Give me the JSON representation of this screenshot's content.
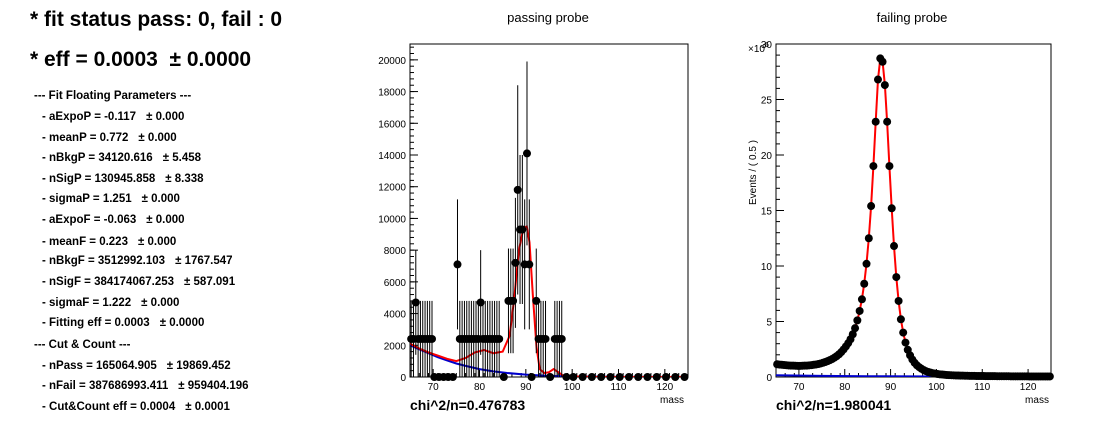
{
  "summary": {
    "fit_status": "* fit status pass: 0, fail : 0",
    "eff_label": "* eff = 0.0003",
    "eff_err": "± 0.0000",
    "floating_header": "--- Fit Floating Parameters ---",
    "params": [
      {
        "label": "- aExpoP = -0.117",
        "err": "± 0.000"
      },
      {
        "label": "- meanP = 0.772",
        "err": "± 0.000"
      },
      {
        "label": "- nBkgP = 34120.616",
        "err": "± 5.458"
      },
      {
        "label": "- nSigP = 130945.858",
        "err": "± 8.338"
      },
      {
        "label": "- sigmaP = 1.251",
        "err": "± 0.000"
      },
      {
        "label": "- aExpoF = -0.063",
        "err": "± 0.000"
      },
      {
        "label": "- meanF = 0.223",
        "err": "± 0.000"
      },
      {
        "label": "- nBkgF = 3512992.103",
        "err": "± 1767.547"
      },
      {
        "label": "- nSigF = 384174067.253",
        "err": "± 587.091"
      },
      {
        "label": "- sigmaF = 1.222",
        "err": "± 0.000"
      },
      {
        "label": "- Fitting eff = 0.0003",
        "err": "± 0.0000"
      }
    ],
    "cutcount_header": "--- Cut & Count ---",
    "cutcount": [
      {
        "label": "- nPass = 165064.905",
        "err": "± 19869.452"
      },
      {
        "label": "- nFail = 387686993.411",
        "err": "± 959404.196"
      },
      {
        "label": "- Cut&Count eff = 0.0004",
        "err": "± 0.0001"
      }
    ]
  },
  "colors": {
    "signal_fit": "#ff0000",
    "background_fit": "#0000cc",
    "points": "#000000"
  },
  "chart_data": [
    {
      "type": "scatter",
      "title": "passing probe",
      "xlabel": "mass",
      "ylabel": "",
      "annotation": "chi^2/n=0.476783",
      "xlim": [
        65,
        125
      ],
      "ylim": [
        0,
        21000
      ],
      "x_ticks": [
        70,
        80,
        90,
        100,
        110,
        120
      ],
      "y_ticks": [
        0,
        2000,
        4000,
        6000,
        8000,
        10000,
        12000,
        14000,
        16000,
        18000,
        20000
      ],
      "y_ticklabels": [
        "0",
        "2000",
        "4000",
        "6000",
        "8000",
        "10000",
        "12000",
        "14000",
        "16000",
        "18000",
        "20000"
      ],
      "points": [
        {
          "x": 65.25,
          "y": 2400,
          "err": 2400
        },
        {
          "x": 65.75,
          "y": 2400,
          "err": 2400
        },
        {
          "x": 66.25,
          "y": 4700,
          "err": 3300
        },
        {
          "x": 66.75,
          "y": 2400,
          "err": 2400
        },
        {
          "x": 67.25,
          "y": 2400,
          "err": 2400
        },
        {
          "x": 67.75,
          "y": 2400,
          "err": 2400
        },
        {
          "x": 68.25,
          "y": 2400,
          "err": 2400
        },
        {
          "x": 68.75,
          "y": 2400,
          "err": 2400
        },
        {
          "x": 69.25,
          "y": 2400,
          "err": 2400
        },
        {
          "x": 69.75,
          "y": 2400,
          "err": 2400
        },
        {
          "x": 70.25,
          "y": 0,
          "err": 0
        },
        {
          "x": 71.25,
          "y": 0,
          "err": 0
        },
        {
          "x": 72.25,
          "y": 0,
          "err": 0
        },
        {
          "x": 73.25,
          "y": 0,
          "err": 0
        },
        {
          "x": 74.25,
          "y": 0,
          "err": 0
        },
        {
          "x": 75.25,
          "y": 7100,
          "err": 4100
        },
        {
          "x": 75.75,
          "y": 2400,
          "err": 2400
        },
        {
          "x": 76.25,
          "y": 2400,
          "err": 2400
        },
        {
          "x": 76.75,
          "y": 2400,
          "err": 2400
        },
        {
          "x": 77.25,
          "y": 2400,
          "err": 2400
        },
        {
          "x": 77.75,
          "y": 2400,
          "err": 2400
        },
        {
          "x": 78.25,
          "y": 2400,
          "err": 2400
        },
        {
          "x": 78.75,
          "y": 2400,
          "err": 2400
        },
        {
          "x": 79.25,
          "y": 2400,
          "err": 2400
        },
        {
          "x": 79.75,
          "y": 2400,
          "err": 2400
        },
        {
          "x": 80.25,
          "y": 4700,
          "err": 3300
        },
        {
          "x": 80.75,
          "y": 2400,
          "err": 2400
        },
        {
          "x": 81.25,
          "y": 2400,
          "err": 2400
        },
        {
          "x": 81.75,
          "y": 2400,
          "err": 2400
        },
        {
          "x": 82.25,
          "y": 2400,
          "err": 2400
        },
        {
          "x": 82.75,
          "y": 2400,
          "err": 2400
        },
        {
          "x": 83.25,
          "y": 2400,
          "err": 2400
        },
        {
          "x": 83.75,
          "y": 2400,
          "err": 2400
        },
        {
          "x": 84.25,
          "y": 2400,
          "err": 2400
        },
        {
          "x": 85.25,
          "y": 0,
          "err": 0
        },
        {
          "x": 86.25,
          "y": 4800,
          "err": 3300
        },
        {
          "x": 86.75,
          "y": 4800,
          "err": 3300
        },
        {
          "x": 87.25,
          "y": 4800,
          "err": 3300
        },
        {
          "x": 87.75,
          "y": 7200,
          "err": 4100
        },
        {
          "x": 88.25,
          "y": 11800,
          "err": 6600
        },
        {
          "x": 88.75,
          "y": 9300,
          "err": 4700
        },
        {
          "x": 89.25,
          "y": 9300,
          "err": 4700
        },
        {
          "x": 89.75,
          "y": 7100,
          "err": 4100
        },
        {
          "x": 90.25,
          "y": 14100,
          "err": 5800
        },
        {
          "x": 90.75,
          "y": 7100,
          "err": 4100
        },
        {
          "x": 91.25,
          "y": 0,
          "err": 0
        },
        {
          "x": 92.25,
          "y": 4800,
          "err": 3300
        },
        {
          "x": 92.75,
          "y": 2400,
          "err": 2400
        },
        {
          "x": 93.25,
          "y": 2400,
          "err": 2400
        },
        {
          "x": 93.75,
          "y": 2400,
          "err": 2400
        },
        {
          "x": 94.25,
          "y": 2400,
          "err": 2400
        },
        {
          "x": 95.25,
          "y": 0,
          "err": 0
        },
        {
          "x": 96.25,
          "y": 2400,
          "err": 2400
        },
        {
          "x": 96.75,
          "y": 2400,
          "err": 2400
        },
        {
          "x": 97.25,
          "y": 2400,
          "err": 2400
        },
        {
          "x": 97.75,
          "y": 2400,
          "err": 2400
        },
        {
          "x": 98.75,
          "y": 0,
          "err": 0
        },
        {
          "x": 100.25,
          "y": 0,
          "err": 0
        },
        {
          "x": 102.25,
          "y": 0,
          "err": 0
        },
        {
          "x": 104.25,
          "y": 0,
          "err": 0
        },
        {
          "x": 106.25,
          "y": 0,
          "err": 0
        },
        {
          "x": 108.25,
          "y": 0,
          "err": 0
        },
        {
          "x": 110.25,
          "y": 0,
          "err": 0
        },
        {
          "x": 112.25,
          "y": 0,
          "err": 0
        },
        {
          "x": 114.25,
          "y": 0,
          "err": 0
        },
        {
          "x": 116.25,
          "y": 0,
          "err": 0
        },
        {
          "x": 118.25,
          "y": 0,
          "err": 0
        },
        {
          "x": 120.25,
          "y": 0,
          "err": 0
        },
        {
          "x": 122.25,
          "y": 0,
          "err": 0
        },
        {
          "x": 124.25,
          "y": 0,
          "err": 0
        }
      ],
      "signal_fit": [
        [
          65,
          2100
        ],
        [
          67,
          1800
        ],
        [
          69,
          1550
        ],
        [
          71,
          1350
        ],
        [
          73,
          1150
        ],
        [
          75,
          1000
        ],
        [
          77,
          1200
        ],
        [
          79,
          1550
        ],
        [
          81,
          1700
        ],
        [
          83,
          1500
        ],
        [
          85,
          1600
        ],
        [
          86.5,
          2600
        ],
        [
          87.5,
          5000
        ],
        [
          88.5,
          8000
        ],
        [
          89.5,
          9400
        ],
        [
          90.2,
          9500
        ],
        [
          90.8,
          8500
        ],
        [
          91.5,
          5200
        ],
        [
          92.3,
          1900
        ],
        [
          93,
          500
        ],
        [
          94,
          250
        ],
        [
          95,
          300
        ],
        [
          96,
          500
        ],
        [
          97,
          300
        ],
        [
          98,
          100
        ],
        [
          100,
          40
        ],
        [
          105,
          0
        ],
        [
          125,
          0
        ]
      ],
      "background_fit": [
        [
          65,
          2000
        ],
        [
          67,
          1750
        ],
        [
          69,
          1500
        ],
        [
          71,
          1250
        ],
        [
          73,
          1050
        ],
        [
          75,
          850
        ],
        [
          77,
          700
        ],
        [
          80,
          500
        ],
        [
          83,
          350
        ],
        [
          86,
          250
        ],
        [
          90,
          150
        ],
        [
          95,
          70
        ],
        [
          100,
          30
        ],
        [
          110,
          5
        ],
        [
          125,
          0
        ]
      ]
    },
    {
      "type": "scatter",
      "title": "failing probe",
      "xlabel": "mass",
      "ylabel": "Events / ( 0.5 )",
      "annotation": "chi^2/n=1.980041",
      "y_multiplier": "×10",
      "y_multiplier_exp": "6",
      "xlim": [
        65,
        125
      ],
      "ylim": [
        0,
        30
      ],
      "x_ticks": [
        70,
        80,
        90,
        100,
        110,
        120
      ],
      "y_ticks": [
        0,
        5,
        10,
        15,
        20,
        25,
        30
      ],
      "y_ticklabels": [
        "0",
        "5",
        "10",
        "15",
        "20",
        "25",
        "30"
      ],
      "points": [
        {
          "x": 65.25,
          "y": 1.15
        },
        {
          "x": 65.75,
          "y": 1.12
        },
        {
          "x": 66.25,
          "y": 1.1
        },
        {
          "x": 66.75,
          "y": 1.08
        },
        {
          "x": 67.25,
          "y": 1.06
        },
        {
          "x": 67.75,
          "y": 1.04
        },
        {
          "x": 68.25,
          "y": 1.03
        },
        {
          "x": 68.75,
          "y": 1.02
        },
        {
          "x": 69.25,
          "y": 1.01
        },
        {
          "x": 69.75,
          "y": 1.0
        },
        {
          "x": 70.25,
          "y": 1.0
        },
        {
          "x": 70.75,
          "y": 1.01
        },
        {
          "x": 71.25,
          "y": 1.02
        },
        {
          "x": 71.75,
          "y": 1.03
        },
        {
          "x": 72.25,
          "y": 1.05
        },
        {
          "x": 72.75,
          "y": 1.07
        },
        {
          "x": 73.25,
          "y": 1.1
        },
        {
          "x": 73.75,
          "y": 1.13
        },
        {
          "x": 74.25,
          "y": 1.17
        },
        {
          "x": 74.75,
          "y": 1.22
        },
        {
          "x": 75.25,
          "y": 1.28
        },
        {
          "x": 75.75,
          "y": 1.35
        },
        {
          "x": 76.25,
          "y": 1.43
        },
        {
          "x": 76.75,
          "y": 1.52
        },
        {
          "x": 77.25,
          "y": 1.62
        },
        {
          "x": 77.75,
          "y": 1.74
        },
        {
          "x": 78.25,
          "y": 1.88
        },
        {
          "x": 78.75,
          "y": 2.05
        },
        {
          "x": 79.25,
          "y": 2.25
        },
        {
          "x": 79.75,
          "y": 2.48
        },
        {
          "x": 80.25,
          "y": 2.75
        },
        {
          "x": 80.75,
          "y": 3.05
        },
        {
          "x": 81.25,
          "y": 3.4
        },
        {
          "x": 81.75,
          "y": 3.85
        },
        {
          "x": 82.25,
          "y": 4.4
        },
        {
          "x": 82.75,
          "y": 5.1
        },
        {
          "x": 83.25,
          "y": 5.95
        },
        {
          "x": 83.75,
          "y": 7.0
        },
        {
          "x": 84.25,
          "y": 8.4
        },
        {
          "x": 84.75,
          "y": 10.2
        },
        {
          "x": 85.25,
          "y": 12.5
        },
        {
          "x": 85.75,
          "y": 15.4
        },
        {
          "x": 86.25,
          "y": 19.0
        },
        {
          "x": 86.75,
          "y": 23.0
        },
        {
          "x": 87.25,
          "y": 26.8
        },
        {
          "x": 87.75,
          "y": 28.7
        },
        {
          "x": 88.25,
          "y": 28.4
        },
        {
          "x": 88.75,
          "y": 26.3
        },
        {
          "x": 89.25,
          "y": 23.0
        },
        {
          "x": 89.75,
          "y": 19.0
        },
        {
          "x": 90.25,
          "y": 15.2
        },
        {
          "x": 90.75,
          "y": 11.8
        },
        {
          "x": 91.25,
          "y": 9.0
        },
        {
          "x": 91.75,
          "y": 6.85
        },
        {
          "x": 92.25,
          "y": 5.2
        },
        {
          "x": 92.75,
          "y": 4.0
        },
        {
          "x": 93.25,
          "y": 3.1
        },
        {
          "x": 93.75,
          "y": 2.45
        },
        {
          "x": 94.25,
          "y": 1.95
        },
        {
          "x": 94.75,
          "y": 1.57
        },
        {
          "x": 95.25,
          "y": 1.28
        },
        {
          "x": 95.75,
          "y": 1.05
        },
        {
          "x": 96.25,
          "y": 0.88
        },
        {
          "x": 96.75,
          "y": 0.74
        },
        {
          "x": 97.25,
          "y": 0.62
        },
        {
          "x": 97.75,
          "y": 0.52
        },
        {
          "x": 98.25,
          "y": 0.45
        },
        {
          "x": 98.75,
          "y": 0.39
        },
        {
          "x": 99.25,
          "y": 0.34
        },
        {
          "x": 99.75,
          "y": 0.3
        },
        {
          "x": 100.25,
          "y": 0.27
        },
        {
          "x": 100.75,
          "y": 0.24
        },
        {
          "x": 101.25,
          "y": 0.22
        },
        {
          "x": 101.75,
          "y": 0.2
        },
        {
          "x": 102.25,
          "y": 0.18
        },
        {
          "x": 102.75,
          "y": 0.17
        },
        {
          "x": 103.25,
          "y": 0.16
        },
        {
          "x": 103.75,
          "y": 0.15
        },
        {
          "x": 104.25,
          "y": 0.14
        },
        {
          "x": 104.75,
          "y": 0.13
        },
        {
          "x": 105.25,
          "y": 0.12
        },
        {
          "x": 105.75,
          "y": 0.12
        },
        {
          "x": 106.25,
          "y": 0.11
        },
        {
          "x": 106.75,
          "y": 0.11
        },
        {
          "x": 107.25,
          "y": 0.1
        },
        {
          "x": 107.75,
          "y": 0.1
        },
        {
          "x": 108.25,
          "y": 0.1
        },
        {
          "x": 108.75,
          "y": 0.09
        },
        {
          "x": 109.25,
          "y": 0.09
        },
        {
          "x": 109.75,
          "y": 0.09
        },
        {
          "x": 110.25,
          "y": 0.09
        },
        {
          "x": 110.75,
          "y": 0.08
        },
        {
          "x": 111.25,
          "y": 0.08
        },
        {
          "x": 111.75,
          "y": 0.08
        },
        {
          "x": 112.25,
          "y": 0.08
        },
        {
          "x": 112.75,
          "y": 0.08
        },
        {
          "x": 113.25,
          "y": 0.07
        },
        {
          "x": 113.75,
          "y": 0.07
        },
        {
          "x": 114.25,
          "y": 0.07
        },
        {
          "x": 114.75,
          "y": 0.07
        },
        {
          "x": 115.25,
          "y": 0.07
        },
        {
          "x": 115.75,
          "y": 0.07
        },
        {
          "x": 116.25,
          "y": 0.06
        },
        {
          "x": 116.75,
          "y": 0.06
        },
        {
          "x": 117.25,
          "y": 0.06
        },
        {
          "x": 117.75,
          "y": 0.06
        },
        {
          "x": 118.25,
          "y": 0.06
        },
        {
          "x": 118.75,
          "y": 0.06
        },
        {
          "x": 119.25,
          "y": 0.06
        },
        {
          "x": 119.75,
          "y": 0.06
        },
        {
          "x": 120.25,
          "y": 0.05
        },
        {
          "x": 120.75,
          "y": 0.05
        },
        {
          "x": 121.25,
          "y": 0.05
        },
        {
          "x": 121.75,
          "y": 0.05
        },
        {
          "x": 122.25,
          "y": 0.05
        },
        {
          "x": 122.75,
          "y": 0.05
        },
        {
          "x": 123.25,
          "y": 0.05
        },
        {
          "x": 123.75,
          "y": 0.05
        },
        {
          "x": 124.25,
          "y": 0.05
        },
        {
          "x": 124.75,
          "y": 0.05
        }
      ],
      "signal_fit": [],
      "background_fit": [
        [
          65,
          0.15
        ],
        [
          75,
          0.1
        ],
        [
          85,
          0.07
        ],
        [
          95,
          0.05
        ],
        [
          105,
          0.035
        ],
        [
          115,
          0.025
        ],
        [
          125,
          0.02
        ]
      ]
    }
  ]
}
